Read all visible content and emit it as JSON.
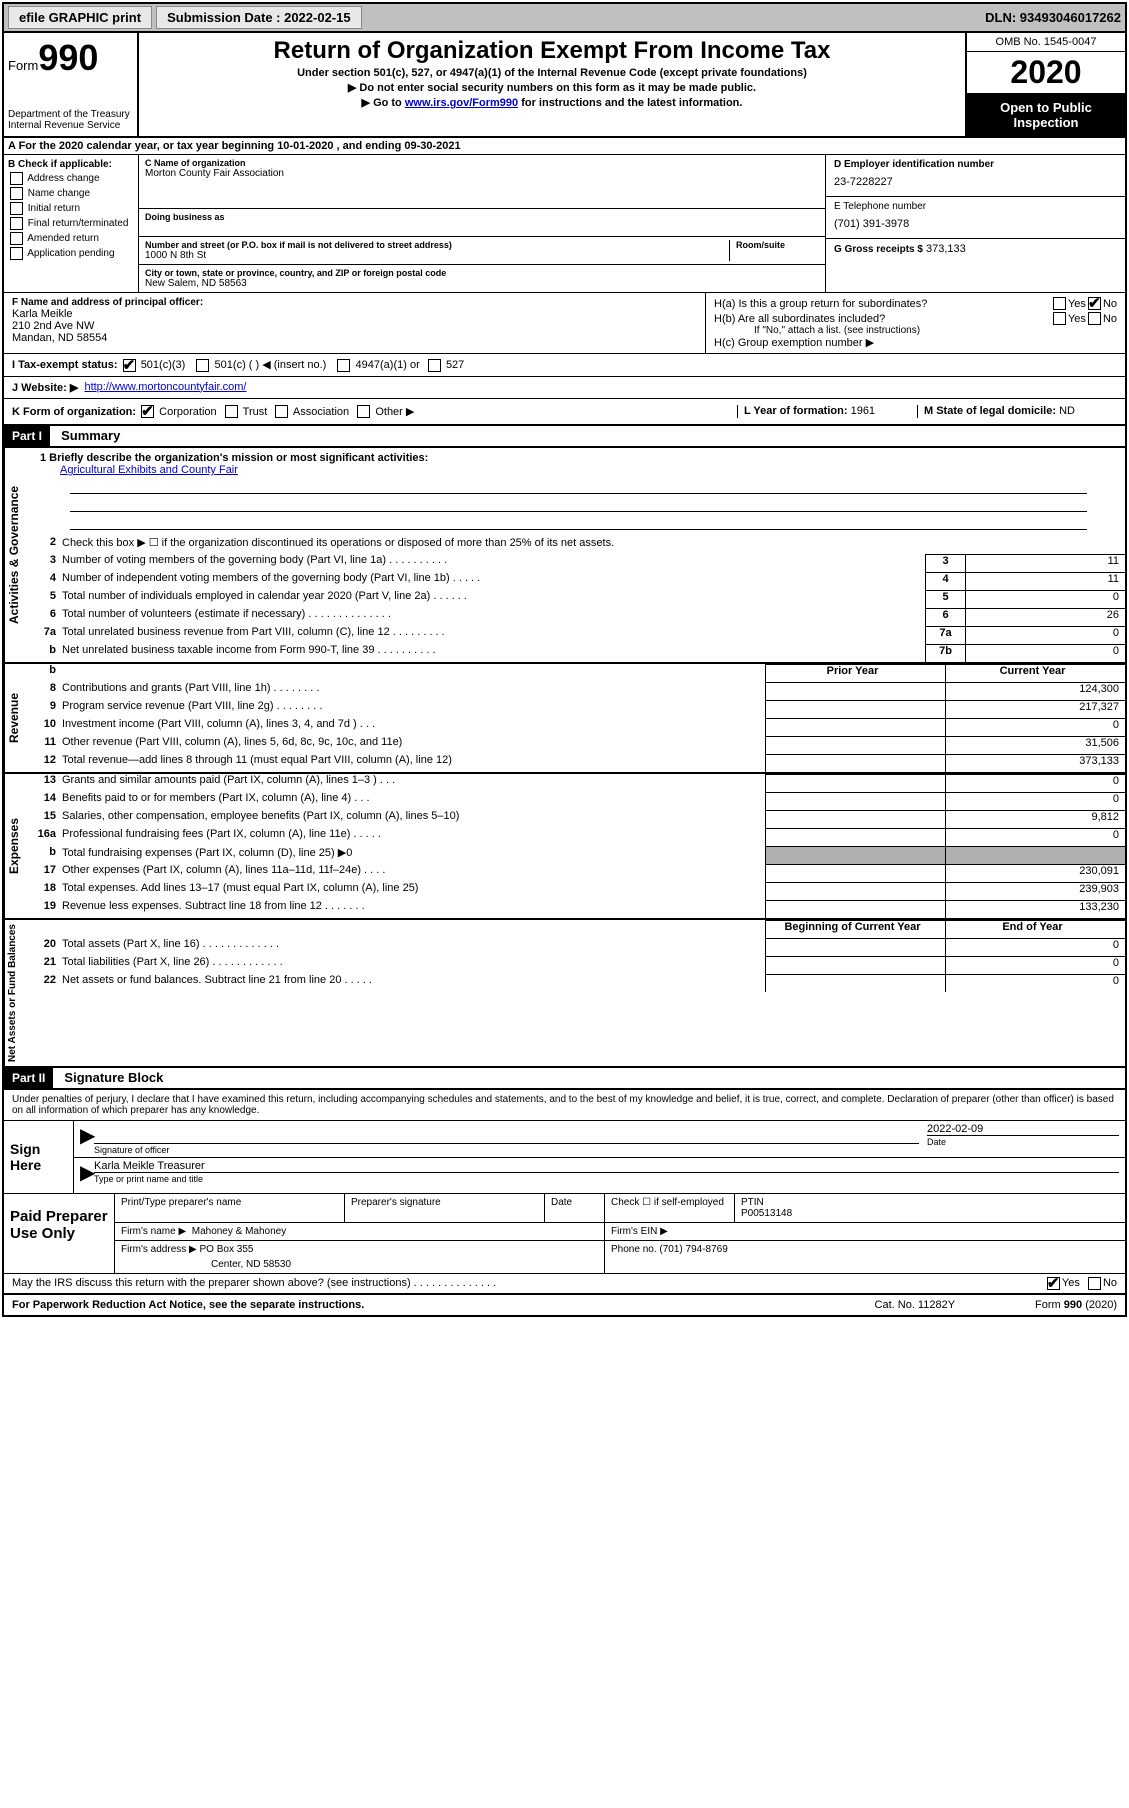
{
  "top_bar": {
    "efile_label": "efile GRAPHIC print",
    "submission_label": "Submission Date : 2022-02-15",
    "dln": "DLN: 93493046017262"
  },
  "header": {
    "form_label": "Form",
    "form_number": "990",
    "dept": "Department of the Treasury\nInternal Revenue Service",
    "title": "Return of Organization Exempt From Income Tax",
    "subtitle": "Under section 501(c), 527, or 4947(a)(1) of the Internal Revenue Code (except private foundations)",
    "note1": "▶ Do not enter social security numbers on this form as it may be made public.",
    "note2_pre": "▶ Go to ",
    "note2_link": "www.irs.gov/Form990",
    "note2_post": " for instructions and the latest information.",
    "omb": "OMB No. 1545-0047",
    "year": "2020",
    "open_public": "Open to Public Inspection"
  },
  "row_a": "A For the 2020 calendar year, or tax year beginning 10-01-2020    , and ending 09-30-2021",
  "col_b": {
    "title": "B Check if applicable:",
    "items": [
      "Address change",
      "Name change",
      "Initial return",
      "Final return/terminated",
      "Amended return",
      "Application pending"
    ]
  },
  "col_c": {
    "name_label": "C Name of organization",
    "name": "Morton County Fair Association",
    "dba_label": "Doing business as",
    "dba": "",
    "street_label": "Number and street (or P.O. box if mail is not delivered to street address)",
    "room_label": "Room/suite",
    "street": "1000 N 8th St",
    "city_label": "City or town, state or province, country, and ZIP or foreign postal code",
    "city": "New Salem, ND  58563"
  },
  "col_d": {
    "ein_label": "D Employer identification number",
    "ein": "23-7228227",
    "phone_label": "E Telephone number",
    "phone": "(701) 391-3978",
    "gross_label": "G Gross receipts $",
    "gross": "373,133"
  },
  "section_f": {
    "label": "F Name and address of principal officer:",
    "name": "Karla Meikle",
    "addr1": "210 2nd Ave NW",
    "addr2": "Mandan, ND  58554"
  },
  "section_h": {
    "ha_label": "H(a)  Is this a group return for subordinates?",
    "hb_label": "H(b)  Are all subordinates included?",
    "hb_note": "If \"No,\" attach a list. (see instructions)",
    "hc_label": "H(c)  Group exemption number ▶"
  },
  "row_i": {
    "label": "I    Tax-exempt status:",
    "opt1": "501(c)(3)",
    "opt2": "501(c) (  ) ◀ (insert no.)",
    "opt3": "4947(a)(1) or",
    "opt4": "527"
  },
  "row_j": {
    "label": "J    Website: ▶",
    "value": "http://www.mortoncountyfair.com/"
  },
  "row_k": {
    "label": "K Form of organization:",
    "opts": [
      "Corporation",
      "Trust",
      "Association",
      "Other ▶"
    ],
    "l_label": "L Year of formation:",
    "l_val": "1961",
    "m_label": "M State of legal domicile:",
    "m_val": "ND"
  },
  "part1": {
    "header": "Part I",
    "title": "Summary"
  },
  "governance": {
    "side": "Activities & Governance",
    "line1_label": "1  Briefly describe the organization's mission or most significant activities:",
    "line1_val": "Agricultural Exhibits and County Fair",
    "line2": "Check this box ▶ ☐  if the organization discontinued its operations or disposed of more than 25% of its net assets.",
    "rows": [
      {
        "n": "3",
        "t": "Number of voting members of the governing body (Part VI, line 1a)  .  .  .  .  .  .  .  .  .  .",
        "bn": "3",
        "v": "11"
      },
      {
        "n": "4",
        "t": "Number of independent voting members of the governing body (Part VI, line 1b)  .  .  .  .  .",
        "bn": "4",
        "v": "11"
      },
      {
        "n": "5",
        "t": "Total number of individuals employed in calendar year 2020 (Part V, line 2a)  .  .  .  .  .  .",
        "bn": "5",
        "v": "0"
      },
      {
        "n": "6",
        "t": "Total number of volunteers (estimate if necessary)  .  .  .  .  .  .  .  .  .  .  .  .  .  .",
        "bn": "6",
        "v": "26"
      },
      {
        "n": "7a",
        "t": "Total unrelated business revenue from Part VIII, column (C), line 12  .  .  .  .  .  .  .  .  .",
        "bn": "7a",
        "v": "0"
      },
      {
        "n": "b",
        "t": "Net unrelated business taxable income from Form 990-T, line 39  .  .  .  .  .  .  .  .  .  .",
        "bn": "7b",
        "v": "0"
      }
    ]
  },
  "revenue": {
    "side": "Revenue",
    "prior_hdr": "Prior Year",
    "curr_hdr": "Current Year",
    "rows": [
      {
        "n": "8",
        "t": "Contributions and grants (Part VIII, line 1h)  .  .  .  .  .  .  .  .",
        "p": "",
        "c": "124,300"
      },
      {
        "n": "9",
        "t": "Program service revenue (Part VIII, line 2g)  .  .  .  .  .  .  .  .",
        "p": "",
        "c": "217,327"
      },
      {
        "n": "10",
        "t": "Investment income (Part VIII, column (A), lines 3, 4, and 7d )  .  .  .",
        "p": "",
        "c": "0"
      },
      {
        "n": "11",
        "t": "Other revenue (Part VIII, column (A), lines 5, 6d, 8c, 9c, 10c, and 11e)",
        "p": "",
        "c": "31,506"
      },
      {
        "n": "12",
        "t": "Total revenue—add lines 8 through 11 (must equal Part VIII, column (A), line 12)",
        "p": "",
        "c": "373,133"
      }
    ]
  },
  "expenses": {
    "side": "Expenses",
    "rows": [
      {
        "n": "13",
        "t": "Grants and similar amounts paid (Part IX, column (A), lines 1–3 )  .  .  .",
        "p": "",
        "c": "0"
      },
      {
        "n": "14",
        "t": "Benefits paid to or for members (Part IX, column (A), line 4)  .  .  .",
        "p": "",
        "c": "0"
      },
      {
        "n": "15",
        "t": "Salaries, other compensation, employee benefits (Part IX, column (A), lines 5–10)",
        "p": "",
        "c": "9,812"
      },
      {
        "n": "16a",
        "t": "Professional fundraising fees (Part IX, column (A), line 11e)  .  .  .  .  .",
        "p": "",
        "c": "0"
      },
      {
        "n": "b",
        "t": "Total fundraising expenses (Part IX, column (D), line 25) ▶0",
        "p": "shaded",
        "c": "shaded"
      },
      {
        "n": "17",
        "t": "Other expenses (Part IX, column (A), lines 11a–11d, 11f–24e)  .  .  .  .",
        "p": "",
        "c": "230,091"
      },
      {
        "n": "18",
        "t": "Total expenses. Add lines 13–17 (must equal Part IX, column (A), line 25)",
        "p": "",
        "c": "239,903"
      },
      {
        "n": "19",
        "t": "Revenue less expenses. Subtract line 18 from line 12  .  .  .  .  .  .  .",
        "p": "",
        "c": "133,230"
      }
    ]
  },
  "netassets": {
    "side": "Net Assets or Fund Balances",
    "begin_hdr": "Beginning of Current Year",
    "end_hdr": "End of Year",
    "rows": [
      {
        "n": "20",
        "t": "Total assets (Part X, line 16)  .  .  .  .  .  .  .  .  .  .  .  .  .",
        "p": "",
        "c": "0"
      },
      {
        "n": "21",
        "t": "Total liabilities (Part X, line 26)  .  .  .  .  .  .  .  .  .  .  .  .",
        "p": "",
        "c": "0"
      },
      {
        "n": "22",
        "t": "Net assets or fund balances. Subtract line 21 from line 20  .  .  .  .  .",
        "p": "",
        "c": "0"
      }
    ]
  },
  "part2": {
    "header": "Part II",
    "title": "Signature Block"
  },
  "perjury": "Under penalties of perjury, I declare that I have examined this return, including accompanying schedules and statements, and to the best of my knowledge and belief, it is true, correct, and complete. Declaration of preparer (other than officer) is based on all information of which preparer has any knowledge.",
  "sign": {
    "label": "Sign Here",
    "sig_officer": "Signature of officer",
    "date_label": "Date",
    "date": "2022-02-09",
    "name": "Karla Meikle  Treasurer",
    "name_label": "Type or print name and title"
  },
  "preparer": {
    "label": "Paid Preparer Use Only",
    "print_label": "Print/Type preparer's name",
    "sig_label": "Preparer's signature",
    "date_label": "Date",
    "check_label": "Check ☐ if self-employed",
    "ptin_label": "PTIN",
    "ptin": "P00513148",
    "firm_name_label": "Firm's name    ▶",
    "firm_name": "Mahoney & Mahoney",
    "firm_ein_label": "Firm's EIN ▶",
    "firm_addr_label": "Firm's address ▶",
    "firm_addr1": "PO Box 355",
    "firm_addr2": "Center, ND  58530",
    "phone_label": "Phone no.",
    "phone": "(701) 794-8769"
  },
  "discuss": "May the IRS discuss this return with the preparer shown above? (see instructions)  .  .  .  .  .  .  .  .  .  .  .  .  .  .",
  "footer": {
    "left": "For Paperwork Reduction Act Notice, see the separate instructions.",
    "mid": "Cat. No. 11282Y",
    "right": "Form 990 (2020)"
  }
}
